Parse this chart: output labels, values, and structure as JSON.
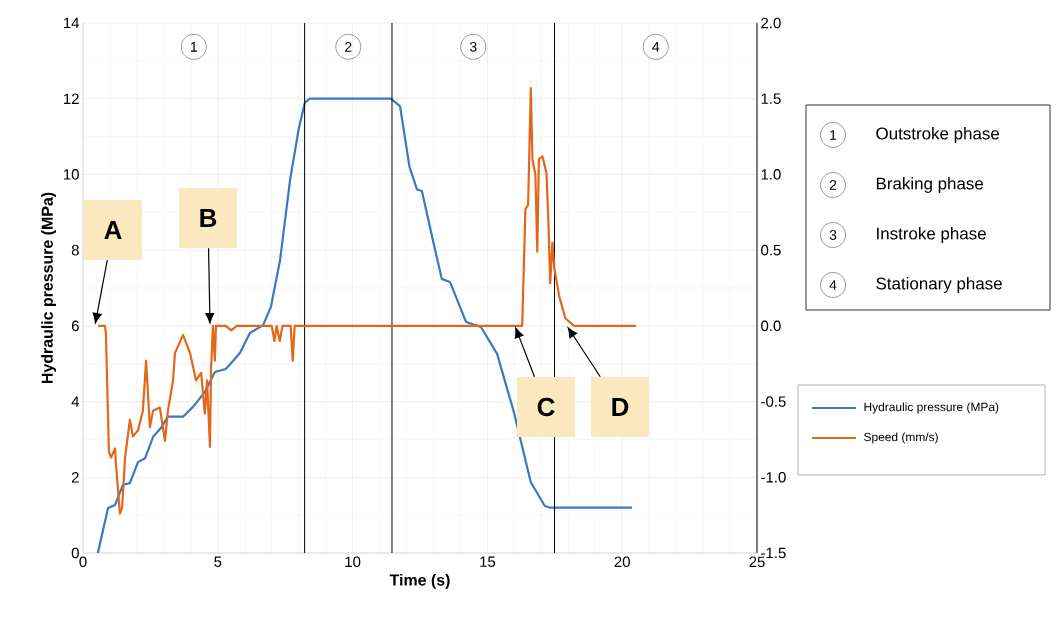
{
  "chart_data": {
    "type": "line",
    "xlabel": "Time (s)",
    "ylabel": "Hydraulic pressure (MPa)",
    "xlim": [
      0,
      25
    ],
    "xticks": [
      0,
      5,
      10,
      15,
      20,
      25
    ],
    "ylim": [
      0,
      14
    ],
    "yticks": [
      0,
      2,
      4,
      6,
      8,
      10,
      12,
      14
    ],
    "y2lim": [
      -1.5,
      2.0
    ],
    "y2ticks": [
      {
        "value": -1.5,
        "label": "-1.5"
      },
      {
        "value": -1.0,
        "label": "-1.0"
      },
      {
        "value": -0.5,
        "label": "-0.5"
      },
      {
        "value": 0,
        "label": "0.0"
      },
      {
        "value": 0.5,
        "label": "0.5"
      },
      {
        "value": 1.0,
        "label": "1.0"
      },
      {
        "value": 1.5,
        "label": "1.5"
      },
      {
        "value": 2.0,
        "label": "2.0"
      }
    ],
    "grid": true,
    "legend": "right",
    "marker": "none",
    "line_style": "solid",
    "series": [
      {
        "name": "Hydraulic pressure (MPa)",
        "color": "#3b78c4",
        "x": [
          0.55,
          0.93,
          1.19,
          1.48,
          1.74,
          2.04,
          2.3,
          2.6,
          2.89,
          3.15,
          3.71,
          4.08,
          4.52,
          4.89,
          5.3,
          5.82,
          6.19,
          6.68,
          6.97,
          7.31,
          7.68,
          8.0,
          8.23,
          8.42,
          11.42,
          11.76,
          12.11,
          12.39,
          12.57,
          13.01,
          13.31,
          13.61,
          14.21,
          14.76,
          15.36,
          15.99,
          16.61,
          17.13,
          17.31,
          20.36
        ],
        "values": [
          0,
          1.19,
          1.27,
          1.8,
          1.85,
          2.4,
          2.5,
          3.07,
          3.3,
          3.6,
          3.6,
          3.86,
          4.25,
          4.78,
          4.86,
          5.28,
          5.81,
          6.02,
          6.5,
          7.74,
          9.85,
          11.2,
          11.9,
          12.0,
          12.0,
          11.8,
          10.2,
          9.6,
          9.56,
          8.16,
          7.24,
          7.16,
          6.1,
          5.97,
          5.26,
          3.7,
          1.87,
          1.24,
          1.2,
          1.2
        ]
      },
      {
        "name": "Speed (mm/s)",
        "color": "#e2671b",
        "axis": "y2",
        "x": [
          0.56,
          0.81,
          0.85,
          0.96,
          1.04,
          1.19,
          1.22,
          1.37,
          1.45,
          1.56,
          1.74,
          1.85,
          2.04,
          2.22,
          2.34,
          2.48,
          2.6,
          2.85,
          3.04,
          3.15,
          3.34,
          3.41,
          3.71,
          3.97,
          4.19,
          4.38,
          4.52,
          4.6,
          4.71,
          4.75,
          4.82,
          4.89,
          4.93,
          5.3,
          5.5,
          5.7,
          7.0,
          7.1,
          7.18,
          7.3,
          7.4,
          7.7,
          7.78,
          7.85,
          16.29,
          16.41,
          16.51,
          16.61,
          16.67,
          16.78,
          16.85,
          16.91,
          17.04,
          17.19,
          17.26,
          17.33,
          17.41,
          17.48,
          17.67,
          17.89,
          18.21,
          20.51
        ],
        "values": [
          0,
          0,
          -0.05,
          -0.83,
          -0.87,
          -0.81,
          -0.91,
          -1.24,
          -1.2,
          -0.87,
          -0.62,
          -0.73,
          -0.69,
          -0.56,
          -0.23,
          -0.67,
          -0.56,
          -0.54,
          -0.76,
          -0.56,
          -0.36,
          -0.18,
          -0.06,
          -0.18,
          -0.36,
          -0.31,
          -0.58,
          -0.36,
          -0.8,
          -0.28,
          0,
          -0.23,
          0,
          0,
          -0.03,
          0,
          0,
          -0.1,
          0,
          -0.1,
          0,
          0,
          -0.23,
          0,
          0,
          0.77,
          0.8,
          1.57,
          1.1,
          1.0,
          0.49,
          1.1,
          1.12,
          1.01,
          0.7,
          0.28,
          0.55,
          0.38,
          0.19,
          0.05,
          0,
          0
        ]
      }
    ],
    "ref_lines": [
      {
        "axis": "x",
        "value": 8.22,
        "color": "#000000"
      },
      {
        "axis": "x",
        "value": 11.46,
        "color": "#000000"
      },
      {
        "axis": "x",
        "value": 17.49,
        "color": "#000000"
      }
    ],
    "annotations": [
      "A",
      "B",
      "C",
      "D",
      "1",
      "2",
      "3",
      "4",
      "Outstroke phase",
      "Braking phase",
      "Instroke phase",
      "Stationary phase"
    ]
  }
}
